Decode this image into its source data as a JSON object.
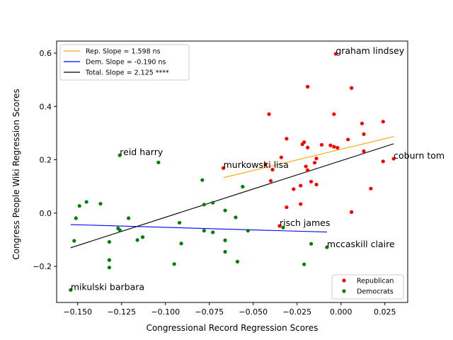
{
  "chart_data": {
    "type": "scatter",
    "title": "",
    "xlabel": "Congressional Record Regression Scores",
    "ylabel": "Congress People Wiki Regression Scores",
    "xlim": [
      -0.162,
      0.038
    ],
    "ylim": [
      -0.335,
      0.645
    ],
    "xticks": [
      -0.15,
      -0.125,
      -0.1,
      -0.075,
      -0.05,
      -0.025,
      0.0,
      0.025
    ],
    "xtick_labels": [
      "−0.150",
      "−0.125",
      "−0.100",
      "−0.075",
      "−0.050",
      "−0.025",
      "0.000",
      "0.025"
    ],
    "yticks": [
      -0.2,
      0.0,
      0.2,
      0.4,
      0.6
    ],
    "ytick_labels": [
      "−0.2",
      "0.0",
      "0.2",
      "0.4",
      "0.6"
    ],
    "grid": false,
    "series": [
      {
        "name": "Republican",
        "kind": "points",
        "color": "#ff0000",
        "points": [
          [
            -0.003,
            0.597
          ],
          [
            -0.019,
            0.474
          ],
          [
            0.006,
            0.469
          ],
          [
            -0.041,
            0.371
          ],
          [
            -0.004,
            0.371
          ],
          [
            0.012,
            0.336
          ],
          [
            0.024,
            0.343
          ],
          [
            0.013,
            0.296
          ],
          [
            -0.031,
            0.279
          ],
          [
            0.004,
            0.276
          ],
          [
            -0.021,
            0.266
          ],
          [
            -0.022,
            0.258
          ],
          [
            -0.011,
            0.256
          ],
          [
            -0.006,
            0.254
          ],
          [
            -0.004,
            0.249
          ],
          [
            -0.002,
            0.245
          ],
          [
            -0.019,
            0.246
          ],
          [
            0.013,
            0.232
          ],
          [
            0.03,
            0.204
          ],
          [
            -0.034,
            0.209
          ],
          [
            -0.014,
            0.205
          ],
          [
            0.024,
            0.194
          ],
          [
            -0.015,
            0.189
          ],
          [
            -0.043,
            0.183
          ],
          [
            -0.02,
            0.175
          ],
          [
            -0.067,
            0.169
          ],
          [
            -0.039,
            0.163
          ],
          [
            -0.019,
            0.161
          ],
          [
            -0.04,
            0.121
          ],
          [
            -0.017,
            0.118
          ],
          [
            -0.014,
            0.107
          ],
          [
            -0.023,
            0.103
          ],
          [
            -0.027,
            0.09
          ],
          [
            0.017,
            0.092
          ],
          [
            -0.023,
            0.034
          ],
          [
            -0.031,
            0.022
          ],
          [
            0.006,
            0.004
          ],
          [
            -0.035,
            -0.048
          ]
        ]
      },
      {
        "name": "Democrats",
        "kind": "points",
        "color": "#008000",
        "points": [
          [
            -0.126,
            0.217
          ],
          [
            -0.104,
            0.19
          ],
          [
            -0.079,
            0.124
          ],
          [
            -0.056,
            0.099
          ],
          [
            -0.145,
            0.042
          ],
          [
            -0.137,
            0.035
          ],
          [
            -0.073,
            0.039
          ],
          [
            -0.078,
            0.032
          ],
          [
            -0.149,
            0.027
          ],
          [
            -0.066,
            0.01
          ],
          [
            -0.151,
            -0.019
          ],
          [
            -0.121,
            -0.019
          ],
          [
            -0.06,
            -0.016
          ],
          [
            -0.092,
            -0.036
          ],
          [
            -0.127,
            -0.057
          ],
          [
            -0.126,
            -0.064
          ],
          [
            -0.078,
            -0.066
          ],
          [
            -0.053,
            -0.066
          ],
          [
            -0.073,
            -0.072
          ],
          [
            -0.033,
            -0.054
          ],
          [
            -0.113,
            -0.09
          ],
          [
            -0.116,
            -0.101
          ],
          [
            -0.066,
            -0.102
          ],
          [
            -0.152,
            -0.104
          ],
          [
            -0.132,
            -0.108
          ],
          [
            -0.091,
            -0.114
          ],
          [
            -0.017,
            -0.115
          ],
          [
            -0.008,
            -0.128
          ],
          [
            -0.066,
            -0.145
          ],
          [
            -0.132,
            -0.176
          ],
          [
            -0.059,
            -0.182
          ],
          [
            -0.095,
            -0.191
          ],
          [
            -0.021,
            -0.192
          ],
          [
            -0.132,
            -0.204
          ],
          [
            -0.154,
            -0.288
          ]
        ]
      },
      {
        "name": "Rep. Slope = 1.598 ns",
        "kind": "line",
        "color": "#ffa500",
        "points": [
          [
            -0.067,
            0.133
          ],
          [
            0.03,
            0.287
          ]
        ]
      },
      {
        "name": "Dem. Slope = -0.190 ns",
        "kind": "line",
        "color": "#0000ff",
        "points": [
          [
            -0.154,
            -0.043
          ],
          [
            -0.008,
            -0.071
          ]
        ]
      },
      {
        "name": "Total. Slope = 2.125 ****",
        "kind": "line",
        "color": "#000000",
        "points": [
          [
            -0.154,
            -0.13
          ],
          [
            0.03,
            0.26
          ]
        ]
      }
    ],
    "annotations": [
      {
        "text": "graham lindsey",
        "x": -0.003,
        "y": 0.597
      },
      {
        "text": "reid harry",
        "x": -0.126,
        "y": 0.217
      },
      {
        "text": "murkowski lisa",
        "x": -0.067,
        "y": 0.169
      },
      {
        "text": "coburn tom",
        "x": 0.03,
        "y": 0.204
      },
      {
        "text": "risch james",
        "x": -0.035,
        "y": -0.048
      },
      {
        "text": "mccaskill claire",
        "x": -0.008,
        "y": -0.128
      },
      {
        "text": "mikulski barbara",
        "x": -0.154,
        "y": -0.288
      }
    ],
    "legend_lines_position": "upper-left",
    "legend_points_position": "lower-right"
  }
}
